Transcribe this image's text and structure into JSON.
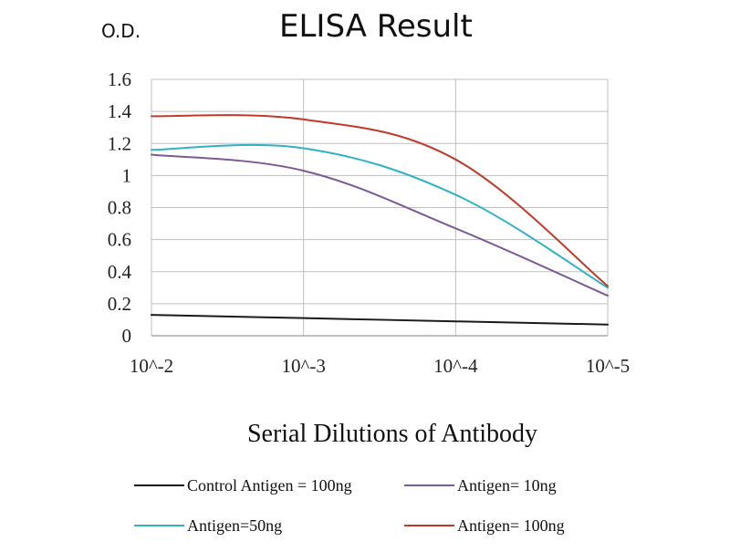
{
  "chart_data": {
    "type": "line",
    "title": "ELISA Result",
    "ylabel": "O.D.",
    "xlabel": "Serial Dilutions of Antibody",
    "x_ticks": [
      "10^-2",
      "10^-3",
      "10^-4",
      "10^-5"
    ],
    "y_ticks": [
      "0",
      "0.2",
      "0.4",
      "0.6",
      "0.8",
      "1",
      "1.2",
      "1.4",
      "1.6"
    ],
    "ylim": [
      0,
      1.6
    ],
    "x_scale": "log (dilution)",
    "grid": true,
    "legend_position": "bottom",
    "series": [
      {
        "name": "Control Antigen = 100ng",
        "color": "#1a1a1a",
        "points": [
          {
            "x": "10^-2",
            "y": 0.13
          },
          {
            "x": "10^-3",
            "y": 0.11
          },
          {
            "x": "10^-4",
            "y": 0.09
          },
          {
            "x": "10^-5",
            "y": 0.07
          }
        ]
      },
      {
        "name": "Antigen= 10ng",
        "color": "#7c5b95",
        "points": [
          {
            "x": "10^-2",
            "y": 1.13
          },
          {
            "x": "10^-3",
            "y": 1.03
          },
          {
            "x": "10^-4",
            "y": 0.67
          },
          {
            "x": "10^-5",
            "y": 0.25
          }
        ]
      },
      {
        "name": "Antigen=50ng",
        "color": "#2fb3c4",
        "points": [
          {
            "x": "10^-2",
            "y": 1.16
          },
          {
            "x": "10^-3",
            "y": 1.17
          },
          {
            "x": "10^-4",
            "y": 0.88
          },
          {
            "x": "10^-5",
            "y": 0.3
          }
        ]
      },
      {
        "name": "Antigen= 100ng",
        "color": "#c0392b",
        "points": [
          {
            "x": "10^-2",
            "y": 1.37
          },
          {
            "x": "10^-3",
            "y": 1.35
          },
          {
            "x": "10^-4",
            "y": 1.1
          },
          {
            "x": "10^-5",
            "y": 0.31
          }
        ]
      }
    ]
  }
}
